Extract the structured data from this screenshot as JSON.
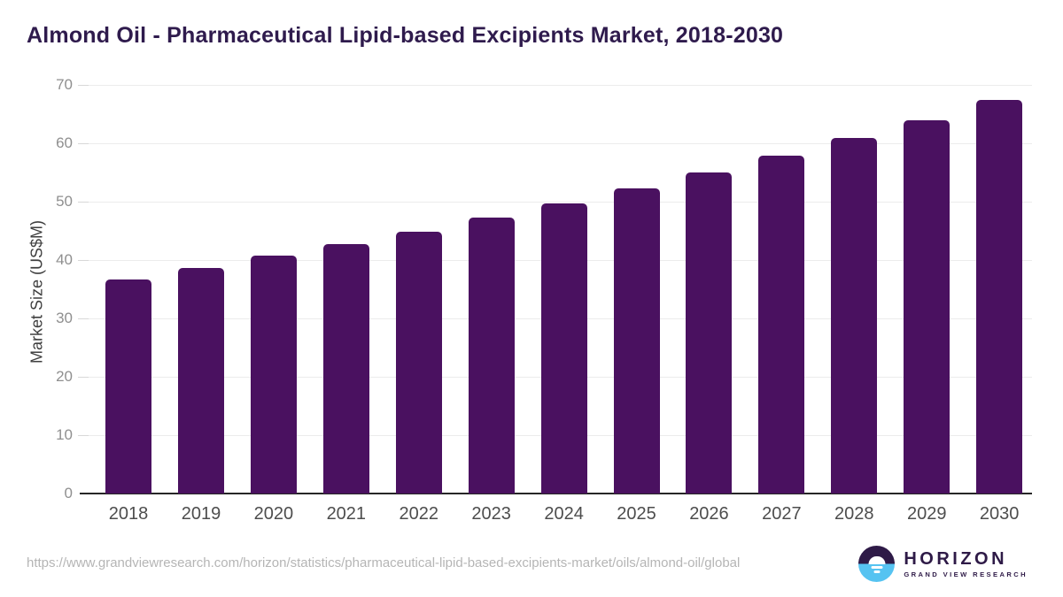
{
  "title": "Almond Oil - Pharmaceutical Lipid-based Excipients Market, 2018-2030",
  "chart_data": {
    "type": "bar",
    "title": "Almond Oil - Pharmaceutical Lipid-based Excipients Market, 2018-2030",
    "categories": [
      "2018",
      "2019",
      "2020",
      "2021",
      "2022",
      "2023",
      "2024",
      "2025",
      "2026",
      "2027",
      "2028",
      "2029",
      "2030"
    ],
    "values": [
      36.7,
      38.6,
      40.7,
      42.8,
      44.9,
      47.3,
      49.7,
      52.3,
      55.0,
      57.9,
      60.9,
      64.0,
      67.4
    ],
    "xlabel": "",
    "ylabel": "Market Size (US$M)",
    "ylim": [
      0,
      70
    ],
    "yticks": [
      0,
      10,
      20,
      30,
      40,
      50,
      60,
      70
    ],
    "grid": "horizontal",
    "legend": "none",
    "bar_color": "#4a1160"
  },
  "colors": {
    "title": "#2f1b4d",
    "bar": "#4a1160",
    "gridline": "#ececec",
    "axis_line": "#262626",
    "ytick_label": "#8f8f8f",
    "xtick_label": "#4d4d4d",
    "url_text": "#b5b5b5",
    "logo_purple": "#2e1a47",
    "logo_blue": "#56c3f1"
  },
  "footer": {
    "source_url": "https://www.grandviewresearch.com/horizon/statistics/pharmaceutical-lipid-based-excipients-market/oils/almond-oil/global",
    "logo": {
      "name": "HORIZON",
      "subtitle": "GRAND VIEW RESEARCH"
    }
  }
}
